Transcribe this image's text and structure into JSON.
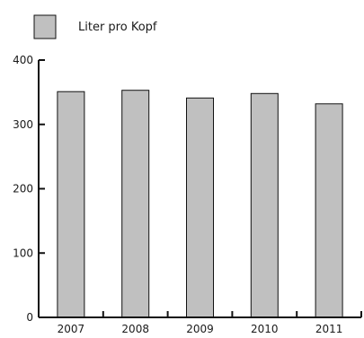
{
  "chart_data": {
    "type": "bar",
    "categories": [
      "2007",
      "2008",
      "2009",
      "2010",
      "2011"
    ],
    "series": [
      {
        "name": "Liter pro Kopf",
        "values": [
          351,
          353,
          341,
          348,
          332
        ]
      }
    ],
    "ylim": [
      0,
      400
    ],
    "yticks": [
      0,
      100,
      200,
      300,
      400
    ],
    "title": "",
    "xlabel": "",
    "ylabel": "",
    "grid": false,
    "legend": "top-left",
    "colors": {
      "bar_fill": "#c0c0c0",
      "bar_stroke": "#111111",
      "axis": "#111111"
    }
  }
}
